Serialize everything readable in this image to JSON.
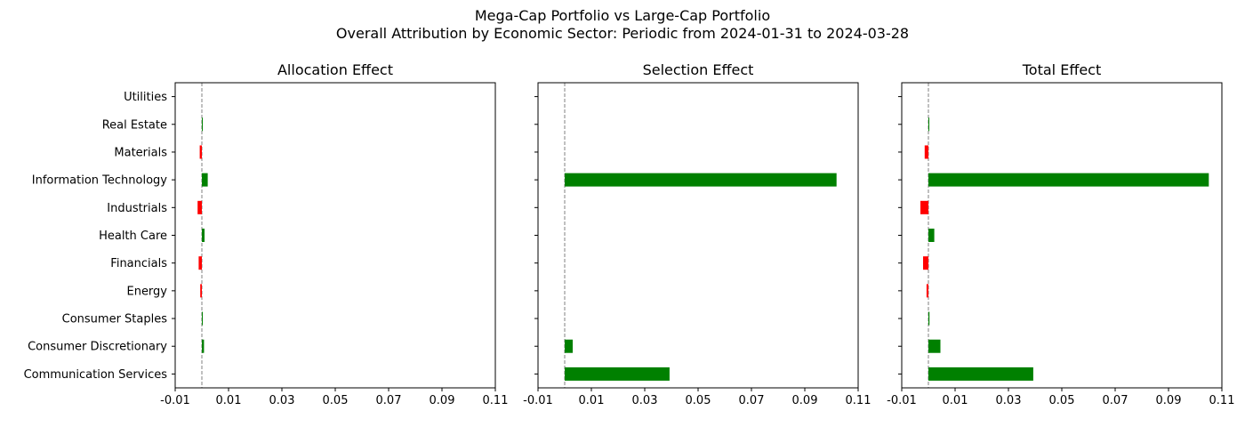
{
  "title_lines": [
    "Mega-Cap Portfolio vs Large-Cap Portfolio",
    "Overall Attribution by Economic Sector: Periodic from 2024-01-31 to 2024-03-28"
  ],
  "colors": {
    "positive": "#008000",
    "negative": "#ff0000",
    "zero_line": "#808080",
    "axis": "#000000"
  },
  "chart_data": [
    {
      "type": "bar",
      "orientation": "horizontal",
      "title": "Allocation Effect",
      "categories": [
        "Communication Services",
        "Consumer Discretionary",
        "Consumer Staples",
        "Energy",
        "Financials",
        "Health Care",
        "Industrials",
        "Information Technology",
        "Materials",
        "Real Estate",
        "Utilities"
      ],
      "values": [
        0.0,
        0.0008,
        0.0003,
        -0.0006,
        -0.0012,
        0.001,
        -0.0016,
        0.0022,
        -0.0008,
        0.0001,
        0.0
      ],
      "xlim": [
        -0.01,
        0.11
      ],
      "xticks": [
        "-0.01",
        "0.01",
        "0.03",
        "0.05",
        "0.07",
        "0.09",
        "0.11"
      ],
      "xtick_values": [
        -0.01,
        0.01,
        0.03,
        0.05,
        0.07,
        0.09,
        0.11
      ],
      "show_yticklabels": true,
      "grid": false
    },
    {
      "type": "bar",
      "orientation": "horizontal",
      "title": "Selection Effect",
      "categories": [
        "Communication Services",
        "Consumer Discretionary",
        "Consumer Staples",
        "Energy",
        "Financials",
        "Health Care",
        "Industrials",
        "Information Technology",
        "Materials",
        "Real Estate",
        "Utilities"
      ],
      "values": [
        0.0393,
        0.003,
        0.0,
        0.0,
        0.0,
        0.0,
        0.0,
        0.1019,
        0.0,
        0.0,
        0.0
      ],
      "xlim": [
        -0.01,
        0.11
      ],
      "xticks": [
        "-0.01",
        "0.01",
        "0.03",
        "0.05",
        "0.07",
        "0.09",
        "0.11"
      ],
      "xtick_values": [
        -0.01,
        0.01,
        0.03,
        0.05,
        0.07,
        0.09,
        0.11
      ],
      "show_yticklabels": false,
      "grid": false
    },
    {
      "type": "bar",
      "orientation": "horizontal",
      "title": "Total Effect",
      "categories": [
        "Communication Services",
        "Consumer Discretionary",
        "Consumer Staples",
        "Energy",
        "Financials",
        "Health Care",
        "Industrials",
        "Information Technology",
        "Materials",
        "Real Estate",
        "Utilities"
      ],
      "values": [
        0.0393,
        0.0045,
        0.0004,
        -0.0007,
        -0.002,
        0.0022,
        -0.003,
        0.1051,
        -0.0014,
        0.0001,
        0.0
      ],
      "xlim": [
        -0.01,
        0.11
      ],
      "xticks": [
        "-0.01",
        "0.01",
        "0.03",
        "0.05",
        "0.07",
        "0.09",
        "0.11"
      ],
      "xtick_values": [
        -0.01,
        0.01,
        0.03,
        0.05,
        0.07,
        0.09,
        0.11
      ],
      "show_yticklabels": false,
      "grid": false
    }
  ]
}
